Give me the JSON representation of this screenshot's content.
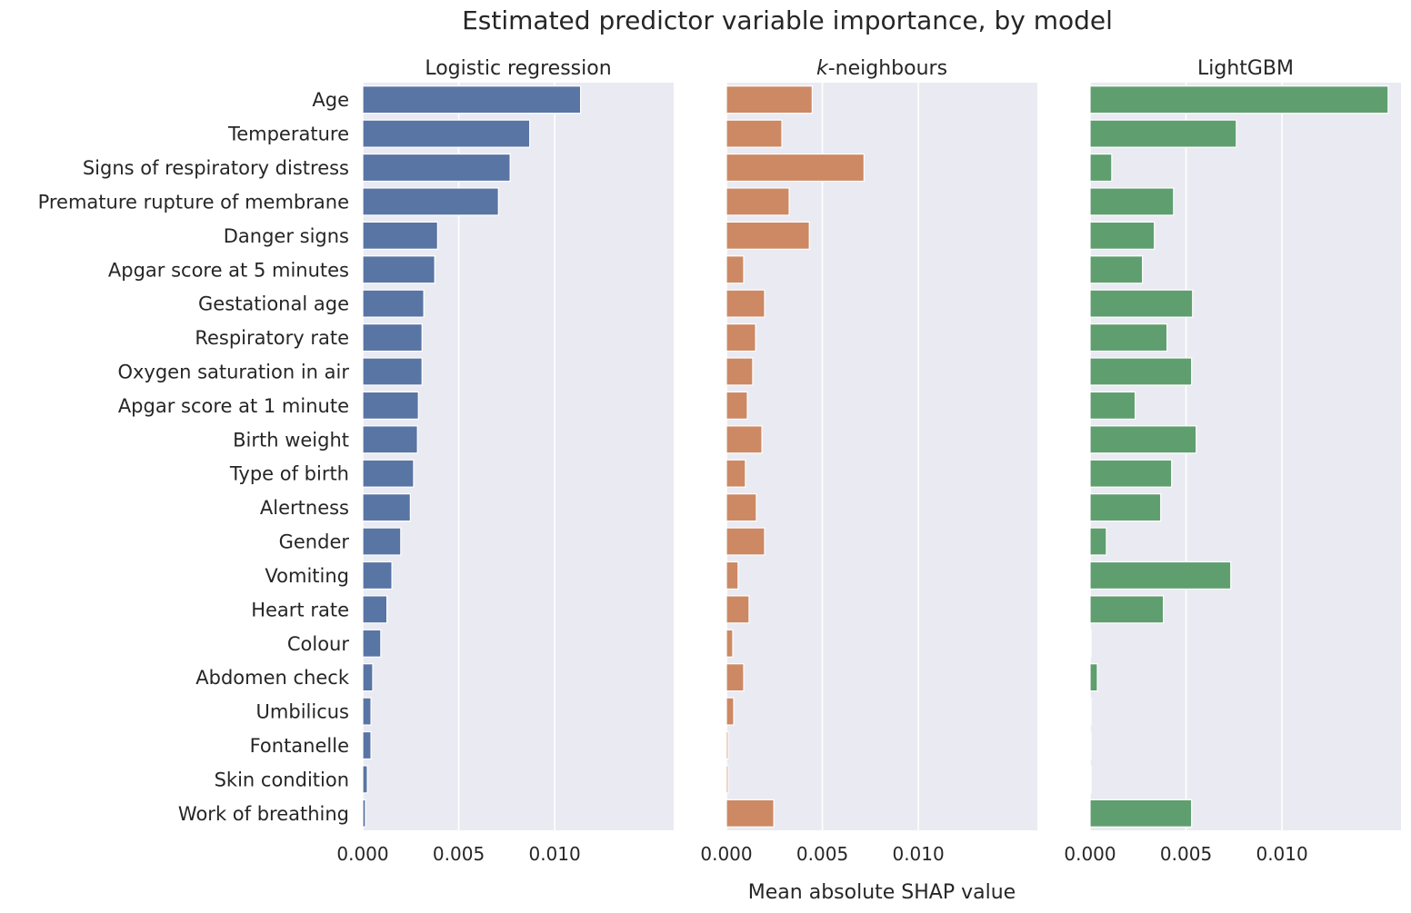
{
  "chart_data": {
    "type": "bar",
    "orientation": "horizontal",
    "title": "Estimated predictor variable importance, by model",
    "xlabel": "Mean absolute SHAP value",
    "xlim": [
      0,
      0.0162
    ],
    "xticks": [
      0.0,
      0.005,
      0.01
    ],
    "xtick_labels": [
      "0.000",
      "0.005",
      "0.010"
    ],
    "grid": true,
    "categories": [
      "Age",
      "Temperature",
      "Signs of respiratory distress",
      "Premature rupture of membrane",
      "Danger signs",
      "Apgar score at 5 minutes",
      "Gestational age",
      "Respiratory rate",
      "Oxygen saturation in air",
      "Apgar score at 1 minute",
      "Birth weight",
      "Type of birth",
      "Alertness",
      "Gender",
      "Vomiting",
      "Heart rate",
      "Colour",
      "Abdomen check",
      "Umbilicus",
      "Fontanelle",
      "Skin condition",
      "Work of breathing"
    ],
    "series": [
      {
        "title": "Logistic regression",
        "color": "#5875a4",
        "values": [
          0.01135,
          0.0087,
          0.00768,
          0.00707,
          0.0039,
          0.00375,
          0.00318,
          0.00309,
          0.00309,
          0.0029,
          0.00285,
          0.00265,
          0.00248,
          0.00198,
          0.00152,
          0.00126,
          0.00094,
          0.00052,
          0.00043,
          0.00043,
          0.00024,
          0.00014
        ]
      },
      {
        "title_prefix": "k",
        "title": "-neighbours",
        "color": "#cc8963",
        "values": [
          0.00447,
          0.00289,
          0.00717,
          0.00327,
          0.00432,
          0.0009,
          0.00199,
          0.00152,
          0.00137,
          0.00109,
          0.00185,
          0.00099,
          0.00156,
          0.00199,
          0.00061,
          0.00118,
          0.00033,
          0.0009,
          0.00038,
          9e-05,
          9e-05,
          0.00247
        ]
      },
      {
        "title": "LightGBM",
        "color": "#5f9e6e",
        "values": [
          0.01553,
          0.00762,
          0.00113,
          0.00435,
          0.00335,
          0.00273,
          0.00534,
          0.00401,
          0.00529,
          0.00235,
          0.00553,
          0.00425,
          0.00368,
          0.00085,
          0.00733,
          0.00382,
          5e-05,
          0.00038,
          5e-05,
          5e-05,
          5e-05,
          0.00529
        ]
      }
    ]
  }
}
